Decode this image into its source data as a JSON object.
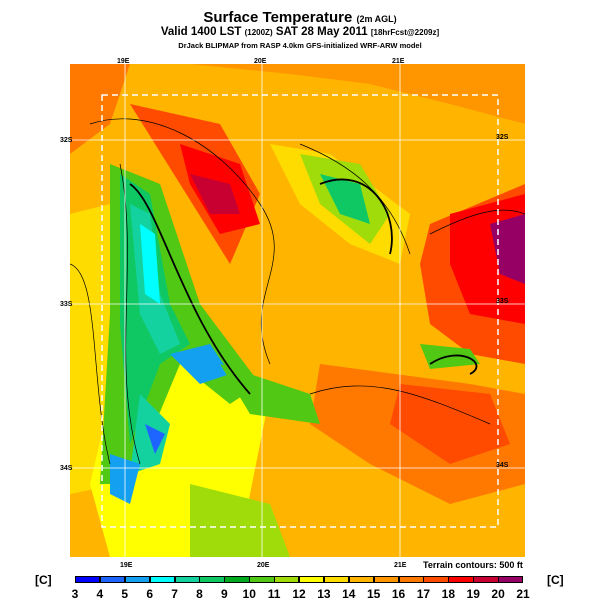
{
  "header": {
    "title": "Surface Temperature",
    "title_note": "(2m AGL)",
    "valid": "Valid 1400 LST",
    "valid_utc": "(1200Z)",
    "date": "SAT 28 May 2011",
    "forecast": "[18hrFcst@2209z]",
    "credit": "DrJack BLIPMAP from RASP 4.0km GFS-initialized WRF-ARW model"
  },
  "axes": {
    "lon_labels": [
      "19E",
      "20E",
      "21E"
    ],
    "lat_labels": [
      "32S",
      "33S",
      "34S"
    ]
  },
  "terrain_note": "Terrain contours: 500 ft",
  "colorbar": {
    "unit": "[C]",
    "ticks": [
      "3",
      "4",
      "5",
      "6",
      "7",
      "8",
      "9",
      "10",
      "11",
      "12",
      "13",
      "14",
      "15",
      "16",
      "17",
      "18",
      "19",
      "20",
      "21"
    ],
    "colors": [
      "#0000ff",
      "#1e64ff",
      "#14a0f0",
      "#00ffff",
      "#14d2a0",
      "#0fc864",
      "#00aa1e",
      "#50c814",
      "#a0dc0a",
      "#ffff00",
      "#ffdc00",
      "#ffb400",
      "#ff9600",
      "#ff7800",
      "#ff4b00",
      "#ff0000",
      "#c80032",
      "#960064"
    ]
  }
}
